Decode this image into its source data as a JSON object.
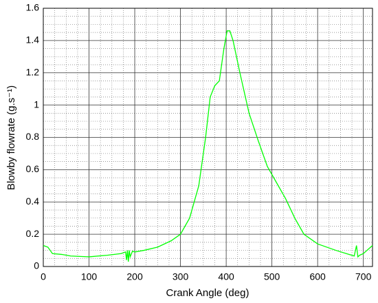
{
  "chart_data": {
    "type": "line",
    "x_label": "Crank Angle (deg)",
    "y_label": "Blowby flowrate (g.s⁻¹)",
    "x": [
      0,
      10,
      20,
      40,
      60,
      100,
      140,
      170,
      180,
      182,
      184,
      186,
      188,
      190,
      195,
      200,
      220,
      250,
      280,
      300,
      320,
      340,
      355,
      365,
      375,
      385,
      395,
      402,
      408,
      415,
      430,
      450,
      470,
      490,
      510,
      530,
      550,
      570,
      600,
      640,
      680,
      685,
      688,
      692,
      700,
      720
    ],
    "series": [
      {
        "color": "#00ff00",
        "values": [
          0.13,
          0.12,
          0.08,
          0.075,
          0.065,
          0.06,
          0.07,
          0.08,
          0.09,
          0.04,
          0.1,
          0.03,
          0.1,
          0.06,
          0.095,
          0.09,
          0.1,
          0.12,
          0.16,
          0.2,
          0.3,
          0.5,
          0.8,
          1.05,
          1.12,
          1.15,
          1.35,
          1.46,
          1.46,
          1.4,
          1.2,
          0.95,
          0.78,
          0.62,
          0.52,
          0.42,
          0.3,
          0.2,
          0.14,
          0.1,
          0.065,
          0.13,
          0.06,
          0.07,
          0.08,
          0.13
        ]
      }
    ],
    "xlim": [
      0,
      720
    ],
    "ylim": [
      0,
      1.6
    ],
    "xticks": [
      0,
      100,
      200,
      300,
      400,
      500,
      600,
      700
    ],
    "yticks": [
      0,
      0.2,
      0.4,
      0.6,
      0.8,
      1,
      1.2,
      1.4,
      1.6
    ],
    "xminorticks": [
      25,
      50,
      75,
      125,
      150,
      175,
      225,
      250,
      275,
      325,
      350,
      375,
      425,
      450,
      475,
      525,
      550,
      575,
      625,
      650,
      675
    ],
    "yminorticks": [
      0.05,
      0.1,
      0.15,
      0.25,
      0.3,
      0.35,
      0.45,
      0.5,
      0.55,
      0.65,
      0.7,
      0.75,
      0.85,
      0.9,
      0.95,
      1.05,
      1.1,
      1.15,
      1.25,
      1.3,
      1.35,
      1.45,
      1.5,
      1.55
    ],
    "grid": true
  }
}
